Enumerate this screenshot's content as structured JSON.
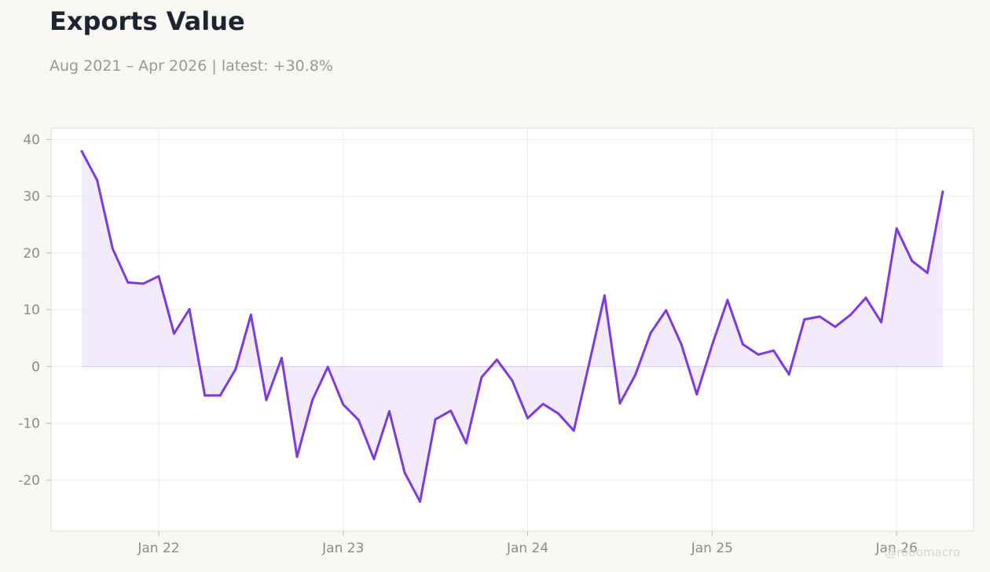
{
  "title": "Exports Value",
  "subtitle": "Aug 2021 – Apr 2026 | latest: +30.8%",
  "watermark": "@robomacro",
  "colors": {
    "line": "#7b3ae2",
    "fill": "#ece4fb",
    "zero_line": "#d8c9f6",
    "grid": "#efedea",
    "plot_bg": "#ffffff",
    "frame": "#dedbd4",
    "page_bg": "#f9f8f5"
  },
  "chart_data": {
    "type": "area",
    "title": "Exports Value",
    "subtitle": "Aug 2021 – Apr 2026 | latest: +30.8%",
    "xlabel": "",
    "ylabel": "",
    "x_range": [
      "2021-06",
      "2026-06"
    ],
    "ylim": [
      -29,
      42
    ],
    "grid": true,
    "legend": "none",
    "x_ticks": [
      {
        "date": "2022-01",
        "label": "Jan 22"
      },
      {
        "date": "2023-01",
        "label": "Jan 23"
      },
      {
        "date": "2024-01",
        "label": "Jan 24"
      },
      {
        "date": "2025-01",
        "label": "Jan 25"
      },
      {
        "date": "2026-01",
        "label": "Jan 26"
      }
    ],
    "y_ticks": [
      -20,
      -10,
      0,
      10,
      20,
      30,
      40
    ],
    "series": [
      {
        "x": [
          "2021-08",
          "2021-09",
          "2021-10",
          "2021-11",
          "2021-12",
          "2022-01",
          "2022-02",
          "2022-03",
          "2022-04",
          "2022-05",
          "2022-06",
          "2022-07",
          "2022-08",
          "2022-09",
          "2022-10",
          "2022-11",
          "2022-12",
          "2023-01",
          "2023-02",
          "2023-03",
          "2023-04",
          "2023-05",
          "2023-06",
          "2023-07",
          "2023-08",
          "2023-09",
          "2023-10",
          "2023-11",
          "2023-12",
          "2024-01",
          "2024-02",
          "2024-03",
          "2024-04",
          "2024-05",
          "2024-06",
          "2024-07",
          "2024-08",
          "2024-09",
          "2024-10",
          "2024-11",
          "2024-12",
          "2025-01",
          "2025-02",
          "2025-03",
          "2025-04",
          "2025-05",
          "2025-06",
          "2025-07",
          "2025-08",
          "2025-09",
          "2025-10",
          "2025-11",
          "2025-12",
          "2026-01",
          "2026-02",
          "2026-03",
          "2026-04"
        ],
        "values": [
          37.9,
          32.8,
          20.8,
          14.8,
          14.6,
          15.9,
          5.8,
          10.1,
          -5.1,
          -5.1,
          -0.5,
          9.1,
          -5.9,
          1.5,
          -15.9,
          -5.9,
          -0.1,
          -6.7,
          -9.4,
          -16.3,
          -7.9,
          -18.7,
          -23.8,
          -9.3,
          -7.8,
          -13.5,
          -1.9,
          1.2,
          -2.5,
          -9.1,
          -6.6,
          -8.3,
          -11.3,
          0.5,
          12.5,
          -6.5,
          -1.5,
          5.9,
          9.9,
          3.9,
          -4.9,
          3.8,
          11.7,
          3.9,
          2.1,
          2.8,
          -1.4,
          8.3,
          8.8,
          7.0,
          9.1,
          12.1,
          7.8,
          24.3,
          18.6,
          16.5,
          30.8
        ]
      }
    ]
  }
}
